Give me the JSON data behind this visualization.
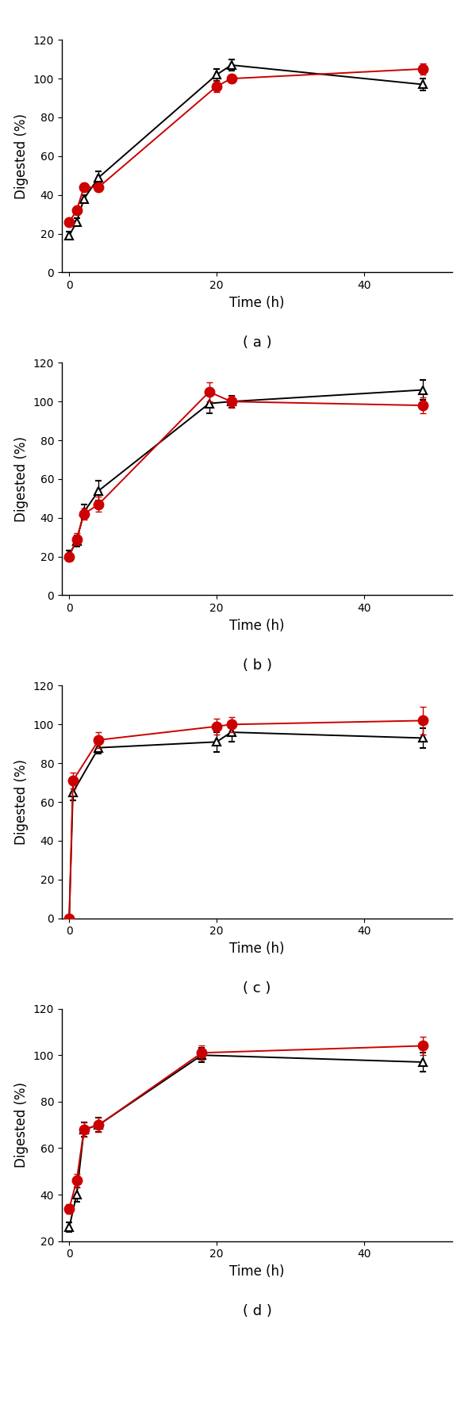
{
  "panels": [
    {
      "label": "( a )",
      "black_x": [
        0,
        1,
        2,
        4,
        20,
        22,
        48
      ],
      "black_y": [
        19,
        26,
        38,
        49,
        102,
        107,
        97
      ],
      "black_yerr": [
        2,
        2,
        2,
        3,
        3,
        3,
        3
      ],
      "red_x": [
        0,
        1,
        2,
        4,
        20,
        22,
        48
      ],
      "red_y": [
        26,
        32,
        44,
        44,
        96,
        100,
        105
      ],
      "red_yerr": [
        2,
        2,
        2,
        2,
        3,
        2,
        3
      ],
      "ylim": [
        0,
        120
      ],
      "yticks": [
        0,
        20,
        40,
        60,
        80,
        100,
        120
      ]
    },
    {
      "label": "( b )",
      "black_x": [
        0,
        1,
        2,
        4,
        19,
        22,
        48
      ],
      "black_y": [
        21,
        28,
        43,
        54,
        99,
        100,
        106
      ],
      "black_yerr": [
        2,
        3,
        4,
        5,
        5,
        3,
        5
      ],
      "red_x": [
        0,
        1,
        2,
        4,
        19,
        22,
        48
      ],
      "red_y": [
        20,
        29,
        42,
        47,
        105,
        100,
        98
      ],
      "red_yerr": [
        2,
        3,
        3,
        4,
        5,
        3,
        4
      ],
      "ylim": [
        0,
        120
      ],
      "yticks": [
        0,
        20,
        40,
        60,
        80,
        100,
        120
      ]
    },
    {
      "label": "( c )",
      "black_x": [
        0,
        0.5,
        4,
        20,
        22,
        48
      ],
      "black_y": [
        0,
        65,
        88,
        91,
        96,
        93
      ],
      "black_yerr": [
        1,
        4,
        3,
        5,
        5,
        5
      ],
      "red_x": [
        0,
        0.5,
        4,
        20,
        22,
        48
      ],
      "red_y": [
        0,
        71,
        92,
        99,
        100,
        102
      ],
      "red_yerr": [
        1,
        4,
        4,
        4,
        4,
        7
      ],
      "ylim": [
        0,
        120
      ],
      "yticks": [
        0,
        20,
        40,
        60,
        80,
        100,
        120
      ]
    },
    {
      "label": "( d )",
      "black_x": [
        0,
        1,
        2,
        4,
        18,
        48
      ],
      "black_y": [
        26,
        40,
        68,
        70,
        100,
        97
      ],
      "black_yerr": [
        2,
        3,
        3,
        3,
        3,
        4
      ],
      "red_x": [
        0,
        1,
        2,
        4,
        18,
        48
      ],
      "red_y": [
        34,
        46,
        68,
        70,
        101,
        104
      ],
      "red_yerr": [
        2,
        3,
        3,
        3,
        3,
        4
      ],
      "ylim": [
        20,
        120
      ],
      "yticks": [
        20,
        40,
        60,
        80,
        100,
        120
      ]
    }
  ],
  "xlabel": "Time (h)",
  "ylabel": "Digested (%)",
  "xlim": [
    -1,
    52
  ],
  "xticks": [
    0,
    20,
    40
  ],
  "black_color": "#000000",
  "red_color": "#cc0000",
  "marker_black": "^",
  "marker_red": "o",
  "markersize_black": 7,
  "markersize_red": 9,
  "linewidth": 1.4,
  "capsize": 3,
  "elinewidth": 1.0,
  "label_fontsize": 12,
  "tick_fontsize": 10,
  "panel_label_fontsize": 13
}
